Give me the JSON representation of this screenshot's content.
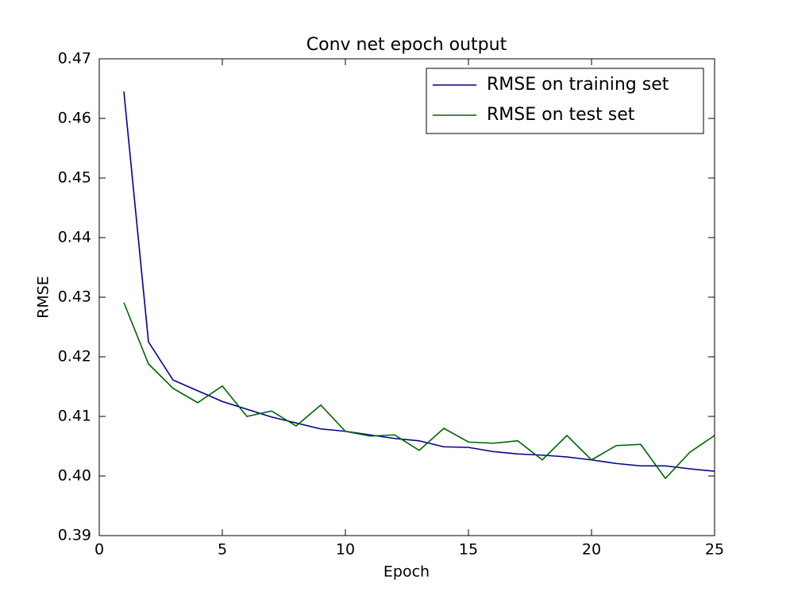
{
  "chart_data": {
    "type": "line",
    "title": "Conv net epoch output",
    "x_label": "Epoch",
    "y_label": "RMSE",
    "x": [
      1,
      2,
      3,
      4,
      5,
      6,
      7,
      8,
      9,
      10,
      11,
      12,
      13,
      14,
      15,
      16,
      17,
      18,
      19,
      20,
      21,
      22,
      23,
      24,
      25
    ],
    "series": [
      {
        "name": "RMSE on training set",
        "color": "#00008b",
        "values": [
          0.4645,
          0.4225,
          0.4161,
          0.4143,
          0.4125,
          0.4112,
          0.4099,
          0.4089,
          0.4079,
          0.4075,
          0.4069,
          0.4063,
          0.4059,
          0.4049,
          0.4048,
          0.4041,
          0.4037,
          0.4035,
          0.4032,
          0.4027,
          0.4021,
          0.4017,
          0.4017,
          0.4012,
          0.4008
        ]
      },
      {
        "name": "RMSE on test set",
        "color": "#006400",
        "values": [
          0.4291,
          0.4188,
          0.4147,
          0.4123,
          0.4151,
          0.41,
          0.4109,
          0.4084,
          0.4119,
          0.4075,
          0.4067,
          0.4069,
          0.4043,
          0.408,
          0.4057,
          0.4055,
          0.4059,
          0.4027,
          0.4068,
          0.4027,
          0.4051,
          0.4053,
          0.3996,
          0.404,
          0.4068
        ]
      }
    ],
    "xlim": [
      0,
      25
    ],
    "xticks": [
      0,
      5,
      10,
      15,
      20,
      25
    ],
    "ylim": [
      0.39,
      0.47
    ],
    "yticks": [
      0.39,
      {
        "value": 0.4,
        "label": "0.40"
      },
      0.41,
      0.42,
      0.43,
      0.44,
      0.45,
      0.46,
      0.47
    ],
    "legend": "upper right",
    "grid": false
  }
}
